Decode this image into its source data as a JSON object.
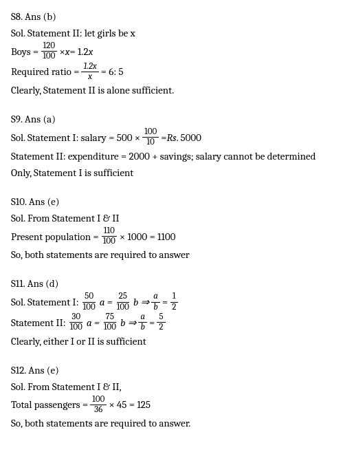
{
  "s8": {
    "heading": "S8. Ans (b)",
    "line1_a": "Sol.  Statement II: let girls be x",
    "line2_a": "Boys = ",
    "frac1_num": "120",
    "frac1_den": "100",
    "line2_b": " × ",
    "line2_c": "x",
    "line2_d": " = 1.2",
    "line2_e": "x",
    "line3_a": "Required ratio = ",
    "frac2_num": "1.2x",
    "frac2_den": "x",
    "line3_b": " = 6: 5",
    "line4": "Clearly, Statement II is alone sufficient."
  },
  "s9": {
    "heading": "S9. Ans (a)",
    "line1_a": "Sol.  Statement I: salary = 500 × ",
    "frac1_num": "100",
    "frac1_den": "10",
    "line1_b": " = ",
    "line1_c": "Rs",
    "line1_d": ". 5000",
    "line2": "Statement II: expenditure = 2000 + savings; salary cannot be determined",
    "line3": "Only, Statement I is sufficient"
  },
  "s10": {
    "heading": "S10. Ans (e)",
    "line1": "Sol.  From Statement I & II",
    "line2_a": "Present population = ",
    "frac1_num": "110",
    "frac1_den": "100",
    "line2_b": " × 1000 = 1100",
    "line3": "So, both statements are required to answer"
  },
  "s11": {
    "heading": "S11. Ans (d)",
    "line1_a": "Sol.  Statement I: ",
    "frac1_num": "50",
    "frac1_den": "100",
    "line1_b": " a = ",
    "frac2_num": "25",
    "frac2_den": "100",
    "line1_c": " b ⇒ ",
    "frac3_num": "a",
    "frac3_den": "b",
    "line1_d": " = ",
    "frac4_num": "1",
    "frac4_den": "2",
    "line2_a": "Statement II: ",
    "frac5_num": "30",
    "frac5_den": "100",
    "line2_b": " a = ",
    "frac6_num": "75",
    "frac6_den": "100",
    "line2_c": " b ⇒ ",
    "frac7_num": "a",
    "frac7_den": "b",
    "line2_d": " = ",
    "frac8_num": "5",
    "frac8_den": "2",
    "line3": "Clearly, either I or II is sufficient"
  },
  "s12": {
    "heading": "S12. Ans (e)",
    "line1": "Sol. From Statement I & II,",
    "line2_a": "Total passengers = ",
    "frac1_num": "100",
    "frac1_den": "36",
    "line2_b": " × 45 = 125",
    "line3": "So, both statements are required to answer."
  }
}
